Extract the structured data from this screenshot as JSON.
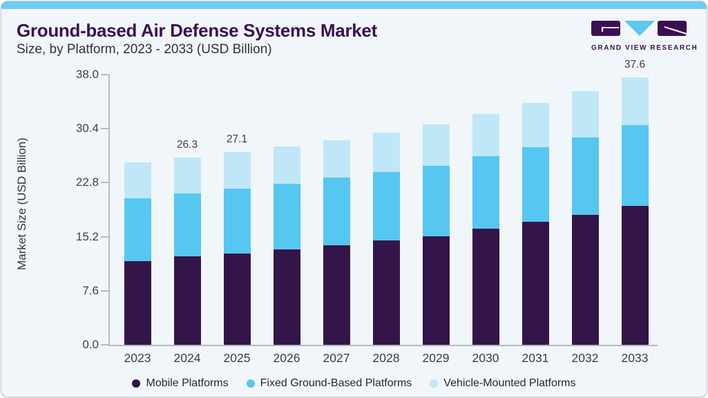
{
  "header": {
    "title": "Ground-based Air Defense Systems Market",
    "subtitle": "Size, by Platform, 2023 - 2033 (USD Billion)"
  },
  "logo": {
    "name": "grand-view-research-logo",
    "text": "GRAND VIEW RESEARCH"
  },
  "colors": {
    "accent_strip": "#6fcbf2",
    "card_background": "#f1f6fa",
    "card_border": "#c6ccd2",
    "title_text": "#3a1053",
    "axis_line": "#b4bac2",
    "logo_purple": "#3a1053",
    "logo_cyan": "#5ec7f0"
  },
  "chart_data": {
    "type": "bar",
    "stacked": true,
    "title": "Ground-based Air Defense Systems Market",
    "subtitle": "Size, by Platform, 2023 - 2033 (USD Billion)",
    "xlabel": "",
    "ylabel": "Market Size (USD Billion)",
    "ylim": [
      0,
      38
    ],
    "ytick_labels": [
      "0.0",
      "7.6",
      "15.2",
      "22.8",
      "30.4",
      "38.0"
    ],
    "grid": false,
    "legend_position": "bottom",
    "categories": [
      "2023",
      "2024",
      "2025",
      "2026",
      "2027",
      "2028",
      "2029",
      "2030",
      "2031",
      "2032",
      "2033"
    ],
    "series": [
      {
        "name": "Mobile Platforms",
        "color": "#331549",
        "values": [
          11.8,
          12.4,
          12.8,
          13.4,
          14.0,
          14.7,
          15.3,
          16.3,
          17.3,
          18.3,
          19.5
        ]
      },
      {
        "name": "Fixed Ground-Based Platforms",
        "color": "#56c7f0",
        "values": [
          8.8,
          8.9,
          9.2,
          9.2,
          9.5,
          9.6,
          9.9,
          10.2,
          10.5,
          10.9,
          11.4
        ]
      },
      {
        "name": "Vehicle-Mounted Platforms",
        "color": "#bfe7f8",
        "values": [
          5.1,
          5.0,
          5.1,
          5.3,
          5.3,
          5.5,
          5.8,
          6.0,
          6.2,
          6.5,
          6.7
        ]
      }
    ],
    "totals": [
      25.7,
      26.3,
      27.1,
      27.9,
      28.8,
      29.8,
      31.0,
      32.5,
      34.0,
      35.7,
      37.6
    ],
    "total_labels": {
      "2024": "26.3",
      "2025": "27.1",
      "2033": "37.6"
    }
  }
}
